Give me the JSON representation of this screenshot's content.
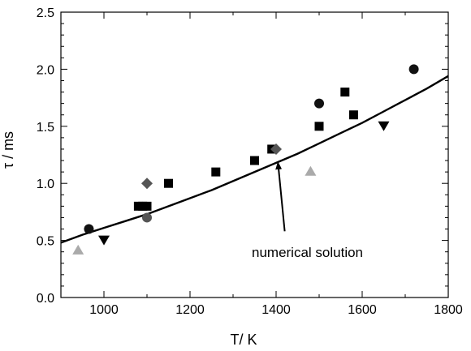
{
  "chart_data": {
    "type": "scatter",
    "xlabel": "T/ K",
    "ylabel": "τ / ms",
    "xlim": [
      900,
      1800
    ],
    "ylim": [
      0.0,
      2.5
    ],
    "x_ticks": [
      1000,
      1200,
      1400,
      1600,
      1800
    ],
    "x_tick_labels": [
      "1000",
      "1200",
      "1400",
      "1600",
      "1800"
    ],
    "y_ticks": [
      0.0,
      0.5,
      1.0,
      1.5,
      2.0,
      2.5
    ],
    "y_tick_labels": [
      "0.0",
      "0.5",
      "1.0",
      "1.5",
      "2.0",
      "2.5"
    ],
    "grid": false,
    "colors": {
      "black": "#000000",
      "dark_grey": "#555555",
      "light_grey": "#aaaaaa"
    },
    "series": [
      {
        "marker": "circle",
        "color": "#111111",
        "points": [
          [
            965,
            0.6
          ],
          [
            1500,
            1.7
          ],
          [
            1720,
            2.0
          ]
        ]
      },
      {
        "marker": "circle",
        "color": "#555555",
        "points": [
          [
            1100,
            0.7
          ]
        ]
      },
      {
        "marker": "square",
        "color": "#000000",
        "points": [
          [
            1080,
            0.8
          ],
          [
            1090,
            0.8
          ],
          [
            1100,
            0.8
          ],
          [
            1150,
            1.0
          ],
          [
            1260,
            1.1
          ],
          [
            1350,
            1.2
          ],
          [
            1390,
            1.3
          ],
          [
            1500,
            1.5
          ],
          [
            1560,
            1.8
          ],
          [
            1580,
            1.6
          ]
        ]
      },
      {
        "marker": "diamond",
        "color": "#555555",
        "points": [
          [
            1100,
            1.0
          ],
          [
            1400,
            1.3
          ]
        ]
      },
      {
        "marker": "triangle-down",
        "color": "#000000",
        "points": [
          [
            1000,
            0.5
          ],
          [
            1650,
            1.5
          ]
        ]
      },
      {
        "marker": "triangle-up",
        "color": "#aaaaaa",
        "points": [
          [
            940,
            0.42
          ],
          [
            1480,
            1.11
          ]
        ]
      }
    ],
    "curve": {
      "x": [
        900,
        950,
        1000,
        1050,
        1100,
        1150,
        1200,
        1250,
        1300,
        1350,
        1400,
        1450,
        1500,
        1550,
        1600,
        1650,
        1700,
        1750,
        1800
      ],
      "y": [
        0.48,
        0.55,
        0.61,
        0.67,
        0.73,
        0.8,
        0.87,
        0.94,
        1.02,
        1.1,
        1.18,
        1.26,
        1.35,
        1.44,
        1.53,
        1.63,
        1.73,
        1.83,
        1.94
      ]
    },
    "annotation": {
      "text": "numerical solution",
      "arrow_from": [
        1420,
        0.58
      ],
      "arrow_to": [
        1405,
        1.2
      ]
    }
  }
}
